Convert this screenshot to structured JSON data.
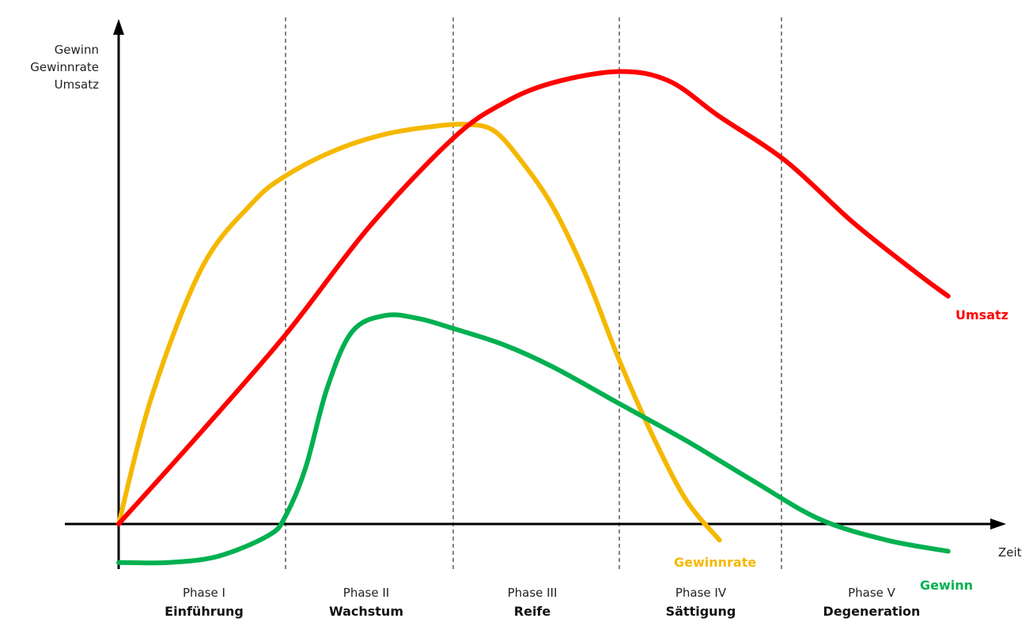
{
  "chart_data": {
    "type": "line",
    "ylabel_lines": [
      "Gewinn",
      "Gewinnrate",
      "Umsatz"
    ],
    "xlabel": "Zeit",
    "xlim": [
      0,
      5
    ],
    "ylim": [
      -0.25,
      2.9
    ],
    "grid": false,
    "phase_boundaries": [
      1,
      2,
      3,
      4
    ],
    "phases": [
      {
        "number": "Phase I",
        "name": "Einführung"
      },
      {
        "number": "Phase II",
        "name": "Wachstum"
      },
      {
        "number": "Phase III",
        "name": "Reife"
      },
      {
        "number": "Phase IV",
        "name": "Sättigung"
      },
      {
        "number": "Phase V",
        "name": "Degeneration"
      }
    ],
    "series": [
      {
        "name": "Umsatz",
        "color": "#ff0000",
        "x": [
          0,
          0.5,
          1.0,
          1.5,
          2.0,
          2.3,
          2.6,
          3.0,
          3.3,
          3.6,
          4.0,
          4.4,
          4.8,
          4.97
        ],
        "y": [
          0,
          0.58,
          1.18,
          1.85,
          2.4,
          2.62,
          2.75,
          2.82,
          2.76,
          2.54,
          2.26,
          1.88,
          1.55,
          1.42
        ]
      },
      {
        "name": "Gewinnrate",
        "color": "#f5b800",
        "x": [
          0,
          0.2,
          0.5,
          0.8,
          1.0,
          1.3,
          1.6,
          1.9,
          2.1,
          2.25,
          2.4,
          2.6,
          2.8,
          3.0,
          3.2,
          3.4,
          3.6
        ],
        "y": [
          0,
          0.8,
          1.6,
          2.0,
          2.17,
          2.33,
          2.43,
          2.48,
          2.49,
          2.45,
          2.28,
          1.98,
          1.55,
          1.02,
          0.55,
          0.15,
          -0.1
        ]
      },
      {
        "name": "Gewinn",
        "color": "#00b050",
        "x": [
          0,
          0.3,
          0.6,
          0.9,
          1.0,
          1.12,
          1.25,
          1.4,
          1.6,
          1.8,
          2.0,
          2.3,
          2.6,
          3.0,
          3.4,
          3.8,
          4.2,
          4.6,
          4.97
        ],
        "y": [
          -0.24,
          -0.24,
          -0.2,
          -0.07,
          0.05,
          0.35,
          0.85,
          1.2,
          1.3,
          1.28,
          1.22,
          1.12,
          0.98,
          0.75,
          0.52,
          0.27,
          0.03,
          -0.1,
          -0.17
        ]
      }
    ]
  }
}
